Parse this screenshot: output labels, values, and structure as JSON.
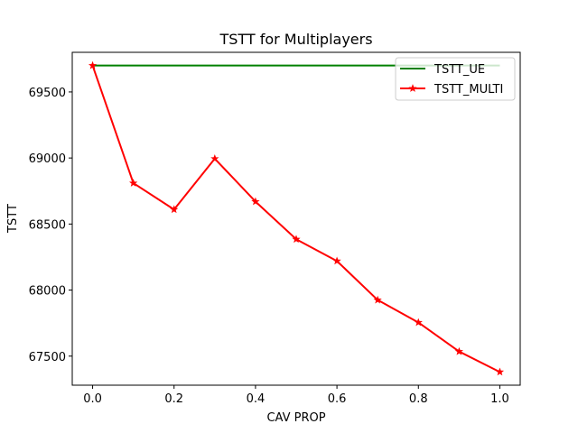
{
  "chart_data": {
    "type": "line",
    "title": "TSTT for Multiplayers",
    "xlabel": "CAV PROP",
    "ylabel": "TSTT",
    "x": [
      0.0,
      0.1,
      0.2,
      0.3,
      0.4,
      0.5,
      0.6,
      0.7,
      0.8,
      0.9,
      1.0
    ],
    "xlim": [
      -0.05,
      1.05
    ],
    "ylim": [
      67280,
      69800
    ],
    "xticks": [
      "0.0",
      "0.2",
      "0.4",
      "0.6",
      "0.8",
      "1.0"
    ],
    "xtick_values": [
      0.0,
      0.2,
      0.4,
      0.6,
      0.8,
      1.0
    ],
    "yticks": [
      "67500",
      "68000",
      "68500",
      "69000",
      "69500"
    ],
    "ytick_values": [
      67500,
      68000,
      68500,
      69000,
      69500
    ],
    "grid": false,
    "legend_position": "top-right",
    "series": [
      {
        "name": "TSTT_UE",
        "color": "#008000",
        "marker": "none",
        "x": [
          0.0,
          1.0
        ],
        "values": [
          69700,
          69700
        ]
      },
      {
        "name": "TSTT_MULTI",
        "color": "#ff0000",
        "marker": "star",
        "x": [
          0.0,
          0.1,
          0.2,
          0.3,
          0.4,
          0.5,
          0.6,
          0.7,
          0.8,
          0.9,
          1.0
        ],
        "values": [
          69700,
          68810,
          68610,
          68995,
          68670,
          68385,
          68220,
          67925,
          67755,
          67535,
          67380
        ]
      }
    ]
  }
}
